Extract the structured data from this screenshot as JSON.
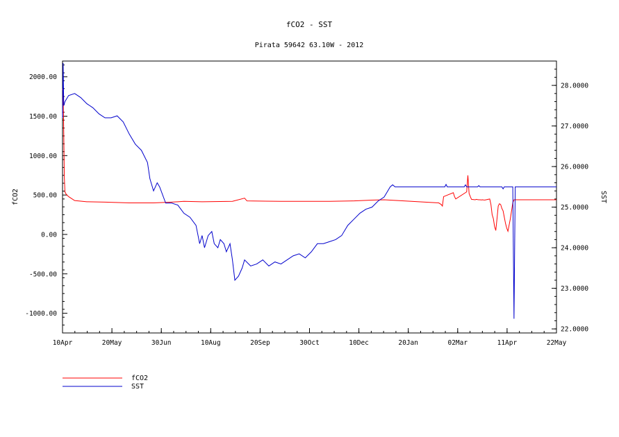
{
  "chart_data": {
    "type": "line",
    "title": "fCO2 - SST",
    "subtitle": "Pirata 59642 63.10W - 2012",
    "x_tick_labels": [
      "10Apr",
      "20May",
      "30Jun",
      "10Aug",
      "20Sep",
      "30Oct",
      "10Dec",
      "20Jan",
      "02Mar",
      "11Apr",
      "22May"
    ],
    "xlim_days": [
      0,
      407
    ],
    "left_axis": {
      "label": "fCO2",
      "ylim": [
        -1250,
        2200
      ],
      "ticks": [
        -1000,
        -500,
        0,
        500,
        1000,
        1500,
        2000
      ],
      "tick_labels": [
        "-1000.00",
        "-500.00",
        "0.00",
        "500.00",
        "1000.00",
        "1500.00",
        "2000.00"
      ]
    },
    "right_axis": {
      "label": "SST",
      "ylim": [
        21.9,
        28.6
      ],
      "ticks": [
        22,
        23,
        24,
        25,
        26,
        27,
        28
      ],
      "tick_labels": [
        "22.0000",
        "23.0000",
        "24.0000",
        "25.0000",
        "26.0000",
        "27.0000",
        "28.0000"
      ]
    },
    "grid": false,
    "legend_position": "bottom-left",
    "series": [
      {
        "name": "fCO2",
        "axis": "left",
        "color": "#ff0000",
        "points": [
          [
            0,
            1850
          ],
          [
            0.5,
            1800
          ],
          [
            1,
            1300
          ],
          [
            1.5,
            720
          ],
          [
            2,
            540
          ],
          [
            3,
            510
          ],
          [
            5,
            480
          ],
          [
            10,
            430
          ],
          [
            20,
            415
          ],
          [
            35,
            410
          ],
          [
            55,
            400
          ],
          [
            75,
            400
          ],
          [
            90,
            410
          ],
          [
            100,
            420
          ],
          [
            115,
            415
          ],
          [
            140,
            420
          ],
          [
            150,
            460
          ],
          [
            152,
            425
          ],
          [
            180,
            420
          ],
          [
            220,
            420
          ],
          [
            240,
            425
          ],
          [
            255,
            435
          ],
          [
            265,
            440
          ],
          [
            407,
            440
          ]
        ],
        "spikes": [
          [
            310,
            400
          ],
          [
            312,
            380
          ],
          [
            313,
            360
          ],
          [
            314,
            480
          ],
          [
            322,
            530
          ],
          [
            323,
            480
          ],
          [
            324,
            450
          ],
          [
            333,
            540
          ],
          [
            334,
            750
          ],
          [
            335,
            520
          ],
          [
            336,
            480
          ],
          [
            337,
            445
          ],
          [
            340,
            440
          ],
          [
            341,
            445
          ],
          [
            342,
            442
          ],
          [
            343,
            440
          ],
          [
            344,
            440
          ],
          [
            345,
            438
          ],
          [
            346,
            440
          ],
          [
            347,
            438
          ],
          [
            348,
            437
          ],
          [
            352,
            450
          ],
          [
            353,
            380
          ],
          [
            354,
            250
          ],
          [
            355,
            200
          ],
          [
            356,
            100
          ],
          [
            357,
            50
          ],
          [
            358,
            200
          ],
          [
            359,
            360
          ],
          [
            360,
            390
          ],
          [
            361,
            380
          ],
          [
            362,
            330
          ],
          [
            363,
            300
          ],
          [
            364,
            220
          ],
          [
            365,
            140
          ],
          [
            366,
            80
          ],
          [
            367,
            40
          ],
          [
            368,
            120
          ],
          [
            369,
            200
          ],
          [
            370,
            300
          ],
          [
            371,
            400
          ],
          [
            372,
            440
          ]
        ]
      },
      {
        "name": "SST",
        "axis": "right",
        "color": "#0000cc",
        "points": [
          [
            0,
            27.2
          ],
          [
            0.5,
            28.55
          ],
          [
            1,
            27.5
          ],
          [
            2,
            27.6
          ],
          [
            5,
            27.75
          ],
          [
            10,
            27.8
          ],
          [
            15,
            27.7
          ],
          [
            20,
            27.55
          ],
          [
            25,
            27.45
          ],
          [
            30,
            27.3
          ],
          [
            35,
            27.2
          ],
          [
            40,
            27.2
          ],
          [
            45,
            27.25
          ],
          [
            50,
            27.1
          ],
          [
            55,
            26.8
          ],
          [
            60,
            26.55
          ],
          [
            65,
            26.4
          ],
          [
            70,
            26.1
          ],
          [
            72,
            25.7
          ],
          [
            75,
            25.4
          ],
          [
            78,
            25.6
          ],
          [
            80,
            25.5
          ],
          [
            85,
            25.1
          ],
          [
            90,
            25.1
          ],
          [
            95,
            25.05
          ],
          [
            100,
            24.85
          ],
          [
            105,
            24.75
          ],
          [
            110,
            24.55
          ],
          [
            113,
            24.1
          ],
          [
            115,
            24.3
          ],
          [
            117,
            24.0
          ],
          [
            120,
            24.3
          ],
          [
            123,
            24.4
          ],
          [
            125,
            24.1
          ],
          [
            128,
            24.0
          ],
          [
            130,
            24.2
          ],
          [
            133,
            24.1
          ],
          [
            135,
            23.9
          ],
          [
            138,
            24.1
          ],
          [
            140,
            23.7
          ],
          [
            142,
            23.2
          ],
          [
            145,
            23.3
          ],
          [
            148,
            23.5
          ],
          [
            150,
            23.7
          ],
          [
            155,
            23.55
          ],
          [
            160,
            23.6
          ],
          [
            165,
            23.7
          ],
          [
            170,
            23.55
          ],
          [
            175,
            23.65
          ],
          [
            180,
            23.6
          ],
          [
            185,
            23.7
          ],
          [
            190,
            23.8
          ],
          [
            195,
            23.85
          ],
          [
            200,
            23.75
          ],
          [
            205,
            23.9
          ],
          [
            210,
            24.1
          ],
          [
            215,
            24.1
          ],
          [
            220,
            24.15
          ],
          [
            225,
            24.2
          ],
          [
            230,
            24.3
          ],
          [
            235,
            24.55
          ],
          [
            240,
            24.7
          ],
          [
            245,
            24.85
          ],
          [
            250,
            24.95
          ],
          [
            255,
            25.0
          ],
          [
            260,
            25.15
          ],
          [
            265,
            25.25
          ],
          [
            268,
            25.4
          ],
          [
            270,
            25.5
          ],
          [
            272,
            25.55
          ],
          [
            274,
            25.5
          ],
          [
            407,
            25.5
          ]
        ],
        "spikes": [
          [
            315,
            25.5
          ],
          [
            316,
            25.56
          ],
          [
            317,
            25.5
          ],
          [
            331,
            25.5
          ],
          [
            332,
            25.55
          ],
          [
            333,
            25.5
          ],
          [
            342,
            25.5
          ],
          [
            343,
            25.53
          ],
          [
            344,
            25.5
          ],
          [
            362,
            25.5
          ],
          [
            363,
            25.45
          ],
          [
            364,
            25.5
          ],
          [
            371,
            25.5
          ],
          [
            372,
            22.25
          ],
          [
            373,
            25.5
          ]
        ]
      }
    ]
  }
}
